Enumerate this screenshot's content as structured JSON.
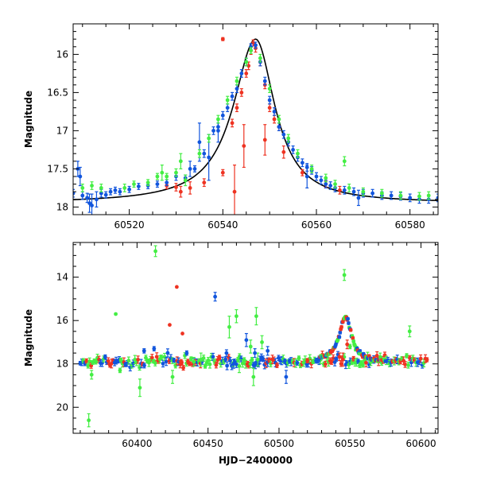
{
  "chart_data": [
    {
      "type": "scatter",
      "title": "",
      "xlabel": "",
      "ylabel": "Magnitude",
      "xlim": [
        60508,
        60586
      ],
      "ylim": [
        18.1,
        15.6
      ],
      "y_inverted": true,
      "xticks": [
        60520,
        60540,
        60560,
        60580
      ],
      "yticks": [
        16,
        16.5,
        17,
        17.5,
        18
      ],
      "model_curve": {
        "description_color": "#000000",
        "t0": 60547.0,
        "peak": 15.8,
        "base": 17.95,
        "rise_tau": 5.8,
        "fall_tau": 5.0,
        "sample_x": [
          60508,
          60520,
          60530,
          60538,
          60542,
          60545,
          60547,
          60549,
          60552,
          60556,
          60560,
          60570,
          60586
        ],
        "sample_y": [
          17.93,
          17.82,
          17.7,
          17.3,
          16.8,
          16.15,
          15.8,
          16.35,
          16.9,
          17.3,
          17.55,
          17.82,
          17.9
        ]
      },
      "series": [
        {
          "color": "#ee3322",
          "points": [
            [
              60528,
              17.72,
              0.04
            ],
            [
              60530,
              17.74,
              0.05
            ],
            [
              60531,
              17.8,
              0.07
            ],
            [
              60533,
              17.75,
              0.08
            ],
            [
              60536,
              17.68,
              0.05
            ],
            [
              60540,
              17.55,
              0.04
            ],
            [
              60542,
              16.9,
              0.05
            ],
            [
              60543,
              16.7,
              0.05
            ],
            [
              60544,
              16.5,
              0.05
            ],
            [
              60545,
              16.25,
              0.05
            ],
            [
              60545.5,
              16.15,
              0.05
            ],
            [
              60546,
              15.95,
              0.05
            ],
            [
              60546.5,
              15.85,
              0.04
            ],
            [
              60547,
              15.92,
              0.05
            ],
            [
              60548,
              16.1,
              0.05
            ],
            [
              60549,
              16.4,
              0.05
            ],
            [
              60550,
              16.7,
              0.05
            ],
            [
              60551,
              16.85,
              0.05
            ],
            [
              60552,
              16.95,
              0.05
            ],
            [
              60554,
              17.15,
              0.05
            ],
            [
              60540,
              15.8,
              0.02
            ],
            [
              60542.5,
              17.8,
              0.35
            ],
            [
              60544.5,
              17.2,
              0.28
            ],
            [
              60549,
              17.12,
              0.2
            ],
            [
              60553,
              17.28,
              0.08
            ],
            [
              60557,
              17.55,
              0.04
            ],
            [
              60562,
              17.7,
              0.04
            ],
            [
              60565,
              17.78,
              0.05
            ]
          ]
        },
        {
          "color": "#1155dd",
          "points": [
            [
              60508,
              17.82,
              0.05
            ],
            [
              60509,
              17.5,
              0.1
            ],
            [
              60509.5,
              17.6,
              0.12
            ],
            [
              60510,
              17.85,
              0.05
            ],
            [
              60511,
              17.88,
              0.06
            ],
            [
              60511.5,
              17.95,
              0.12
            ],
            [
              60512,
              17.98,
              0.15
            ],
            [
              60513,
              17.9,
              0.1
            ],
            [
              60514,
              17.82,
              0.05
            ],
            [
              60515,
              17.84,
              0.04
            ],
            [
              60516,
              17.8,
              0.04
            ],
            [
              60517,
              17.78,
              0.04
            ],
            [
              60518,
              17.8,
              0.04
            ],
            [
              60520,
              17.77,
              0.04
            ],
            [
              60522,
              17.73,
              0.04
            ],
            [
              60524,
              17.72,
              0.04
            ],
            [
              60526,
              17.7,
              0.04
            ],
            [
              60528,
              17.68,
              0.04
            ],
            [
              60530,
              17.6,
              0.05
            ],
            [
              60532,
              17.62,
              0.04
            ],
            [
              60533,
              17.5,
              0.1
            ],
            [
              60534,
              17.5,
              0.04
            ],
            [
              60536,
              17.3,
              0.05
            ],
            [
              60537,
              17.35,
              0.3
            ],
            [
              60538,
              17.0,
              0.05
            ],
            [
              60539,
              16.95,
              0.05
            ],
            [
              60540,
              16.8,
              0.05
            ],
            [
              60541,
              16.7,
              0.05
            ],
            [
              60542,
              16.55,
              0.05
            ],
            [
              60543,
              16.45,
              0.05
            ],
            [
              60544,
              16.25,
              0.05
            ],
            [
              60545,
              16.1,
              0.05
            ],
            [
              60546,
              15.9,
              0.04
            ],
            [
              60547,
              15.88,
              0.04
            ],
            [
              60548,
              16.1,
              0.05
            ],
            [
              60549,
              16.35,
              0.05
            ],
            [
              60550,
              16.6,
              0.05
            ],
            [
              60551,
              16.75,
              0.05
            ],
            [
              60552,
              16.95,
              0.05
            ],
            [
              60553,
              17.05,
              0.05
            ],
            [
              60554,
              17.15,
              0.05
            ],
            [
              60555,
              17.25,
              0.05
            ],
            [
              60556,
              17.35,
              0.05
            ],
            [
              60557,
              17.42,
              0.05
            ],
            [
              60558,
              17.48,
              0.05
            ],
            [
              60559,
              17.52,
              0.05
            ],
            [
              60560,
              17.6,
              0.05
            ],
            [
              60561,
              17.65,
              0.05
            ],
            [
              60562,
              17.7,
              0.05
            ],
            [
              60563,
              17.72,
              0.05
            ],
            [
              60564,
              17.75,
              0.05
            ],
            [
              60566,
              17.78,
              0.05
            ],
            [
              60568,
              17.8,
              0.05
            ],
            [
              60570,
              17.82,
              0.05
            ],
            [
              60572,
              17.82,
              0.05
            ],
            [
              60574,
              17.85,
              0.05
            ],
            [
              60576,
              17.85,
              0.05
            ],
            [
              60578,
              17.86,
              0.05
            ],
            [
              60580,
              17.88,
              0.05
            ],
            [
              60582,
              17.9,
              0.05
            ],
            [
              60584,
              17.9,
              0.05
            ],
            [
              60586,
              17.88,
              0.05
            ],
            [
              60535,
              17.15,
              0.25
            ],
            [
              60539,
              17.0,
              0.15
            ],
            [
              60558,
              17.6,
              0.15
            ],
            [
              60569,
              17.88,
              0.1
            ]
          ]
        },
        {
          "color": "#44ee44",
          "points": [
            [
              60510,
              17.75,
              0.05
            ],
            [
              60512,
              17.72,
              0.05
            ],
            [
              60514,
              17.75,
              0.05
            ],
            [
              60519,
              17.75,
              0.05
            ],
            [
              60521,
              17.7,
              0.04
            ],
            [
              60524,
              17.68,
              0.04
            ],
            [
              60526,
              17.6,
              0.04
            ],
            [
              60528,
              17.6,
              0.04
            ],
            [
              60530,
              17.55,
              0.05
            ],
            [
              60531,
              17.4,
              0.1
            ],
            [
              60532,
              17.65,
              0.07
            ],
            [
              60535,
              17.3,
              0.05
            ],
            [
              60537,
              17.1,
              0.05
            ],
            [
              60539,
              16.85,
              0.05
            ],
            [
              60541,
              16.6,
              0.05
            ],
            [
              60543,
              16.35,
              0.05
            ],
            [
              60545,
              16.1,
              0.05
            ],
            [
              60546,
              15.95,
              0.04
            ],
            [
              60548,
              16.05,
              0.05
            ],
            [
              60550,
              16.45,
              0.05
            ],
            [
              60552,
              16.85,
              0.05
            ],
            [
              60554,
              17.1,
              0.05
            ],
            [
              60556,
              17.3,
              0.05
            ],
            [
              60559,
              17.5,
              0.05
            ],
            [
              60562,
              17.62,
              0.05
            ],
            [
              60564,
              17.7,
              0.05
            ],
            [
              60566,
              17.4,
              0.06
            ],
            [
              60567,
              17.75,
              0.05
            ],
            [
              60570,
              17.8,
              0.05
            ],
            [
              60574,
              17.82,
              0.05
            ],
            [
              60578,
              17.85,
              0.05
            ],
            [
              60582,
              17.86,
              0.05
            ],
            [
              60584,
              17.85,
              0.05
            ],
            [
              60527,
              17.55,
              0.1
            ]
          ]
        }
      ]
    },
    {
      "type": "scatter",
      "title": "",
      "xlabel": "HJD−2400000",
      "ylabel": "Magnitude",
      "xlim": [
        60355,
        60612
      ],
      "ylim": [
        21.2,
        12.4
      ],
      "y_inverted": true,
      "xticks": [
        60400,
        60450,
        60500,
        60550,
        60600
      ],
      "yticks": [
        14,
        16,
        18,
        20
      ],
      "series": [
        {
          "color": "#44ee44",
          "points": [
            [
              60366,
              20.6,
              0.3
            ],
            [
              60368,
              18.5,
              0.2
            ],
            [
              60385,
              15.7,
              0.05
            ],
            [
              60388,
              18.3,
              0.1
            ],
            [
              60402,
              19.1,
              0.4
            ],
            [
              60413,
              12.8,
              0.25
            ],
            [
              60425,
              18.6,
              0.3
            ],
            [
              60445,
              17.8,
              0.3
            ],
            [
              60465,
              16.3,
              0.5
            ],
            [
              60470,
              15.8,
              0.3
            ],
            [
              60472,
              18.1,
              0.3
            ],
            [
              60480,
              17.2,
              0.3
            ],
            [
              60482,
              18.6,
              0.4
            ],
            [
              60484,
              15.8,
              0.4
            ],
            [
              60485,
              17.8,
              0.3
            ],
            [
              60488,
              17.0,
              0.3
            ],
            [
              60546,
              13.9,
              0.25
            ],
            [
              60592,
              16.5,
              0.25
            ],
            [
              60550,
              17.2,
              0.1
            ],
            [
              60440,
              17.9,
              0.2
            ]
          ]
        },
        {
          "color": "#ee3322",
          "points": [
            [
              60423,
              16.2,
              0.05
            ],
            [
              60428,
              14.45,
              0.05
            ],
            [
              60432,
              16.6,
              0.05
            ],
            [
              60431,
              17.9,
              0.1
            ],
            [
              60545,
              17.8,
              0.3
            ],
            [
              60548,
              17.1,
              0.2
            ],
            [
              60458,
              17.7,
              0.1
            ],
            [
              60520,
              17.85,
              0.1
            ]
          ]
        },
        {
          "color": "#1155dd",
          "points": [
            [
              60455,
              14.9,
              0.2
            ],
            [
              60477,
              16.9,
              0.3
            ],
            [
              60483,
              17.5,
              0.2
            ],
            [
              60463,
              17.5,
              0.15
            ],
            [
              60405,
              17.4,
              0.1
            ],
            [
              60412,
              17.3,
              0.1
            ],
            [
              60435,
              17.5,
              0.1
            ],
            [
              60505,
              18.6,
              0.3
            ],
            [
              60492,
              17.4,
              0.2
            ],
            [
              60468,
              18.0,
              0.2
            ]
          ]
        }
      ],
      "baseline_band": {
        "mag": 17.9,
        "scatter": 0.12,
        "x_start": 60360,
        "x_end": 60605
      },
      "outburst": {
        "t0": 60547,
        "peak": 15.85,
        "base": 17.9,
        "rise_tau": 5.5,
        "fall_tau": 5.0
      }
    }
  ]
}
